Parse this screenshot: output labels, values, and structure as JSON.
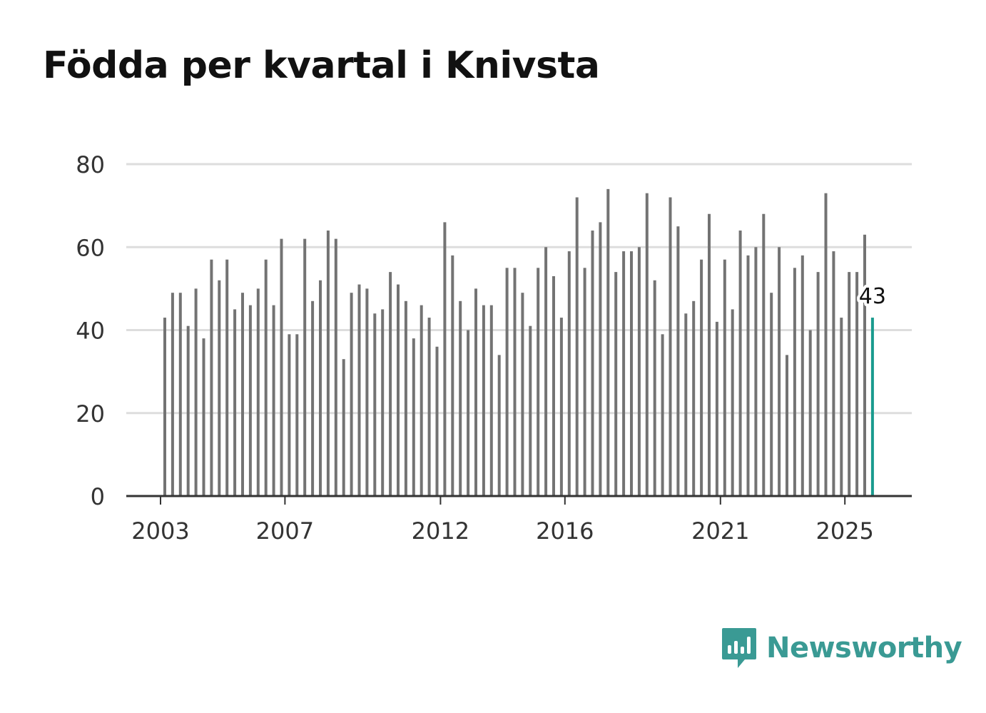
{
  "title": "Födda per kvartal i Knivsta",
  "brand": {
    "name": "Newsworthy",
    "color": "#3a9a94",
    "icon": "newsworthy-logo-icon"
  },
  "colors": {
    "bar": "#737373",
    "highlight": "#1a9b8e",
    "grid": "#dddddd",
    "axis": "#333333"
  },
  "chart_data": {
    "type": "bar",
    "title": "Födda per kvartal i Knivsta",
    "xlabel": "",
    "ylabel": "",
    "ylim": [
      0,
      80
    ],
    "yticks": [
      0,
      20,
      40,
      60,
      80
    ],
    "start_year": 2003,
    "start_quarter": 1,
    "xticks": [
      "2003",
      "2007",
      "2012",
      "2016",
      "2021",
      "2025"
    ],
    "highlight_label": "43",
    "values": [
      43,
      49,
      49,
      41,
      50,
      38,
      57,
      52,
      57,
      45,
      49,
      46,
      50,
      57,
      46,
      62,
      39,
      39,
      62,
      47,
      52,
      64,
      62,
      33,
      49,
      51,
      50,
      44,
      45,
      54,
      51,
      47,
      38,
      46,
      43,
      36,
      66,
      58,
      47,
      40,
      50,
      46,
      46,
      34,
      55,
      55,
      49,
      41,
      55,
      60,
      53,
      43,
      59,
      72,
      55,
      64,
      66,
      74,
      54,
      59,
      59,
      60,
      73,
      52,
      39,
      72,
      65,
      44,
      47,
      57,
      68,
      42,
      57,
      45,
      64,
      58,
      60,
      68,
      49,
      60,
      34,
      55,
      58,
      40,
      54,
      73,
      59,
      43,
      54,
      54,
      63,
      43
    ]
  }
}
